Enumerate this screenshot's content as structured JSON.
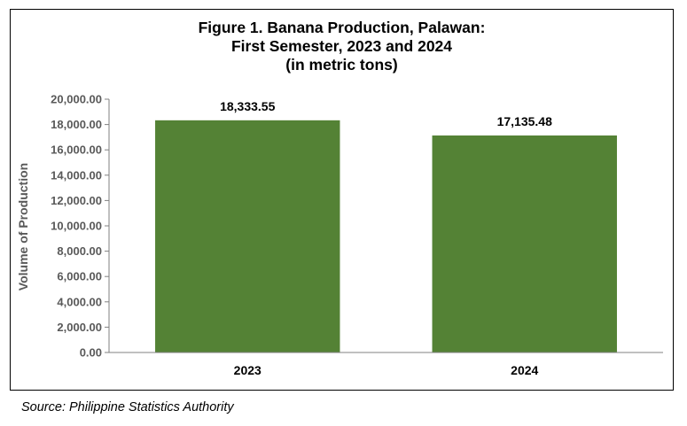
{
  "chart_data": {
    "type": "bar",
    "title_lines": [
      "Figure 1. Banana Production, Palawan:",
      "First Semester, 2023 and 2024",
      "(in metric tons)"
    ],
    "categories": [
      "2023",
      "2024"
    ],
    "values": [
      18333.55,
      17135.48
    ],
    "value_labels": [
      "18,333.55",
      "17,135.48"
    ],
    "ylabel": "Volume of Production",
    "xlabel": "",
    "ylim": [
      0,
      20000
    ],
    "yticks": [
      0,
      2000,
      4000,
      6000,
      8000,
      10000,
      12000,
      14000,
      16000,
      18000,
      20000
    ],
    "ytick_labels": [
      "0.00",
      "2,000.00",
      "4,000.00",
      "6,000.00",
      "8,000.00",
      "10,000.00",
      "12,000.00",
      "14,000.00",
      "16,000.00",
      "18,000.00",
      "20,000.00"
    ],
    "bar_color": "#548235",
    "grid": false,
    "legend": "none"
  },
  "source": "Source: Philippine Statistics Authority"
}
